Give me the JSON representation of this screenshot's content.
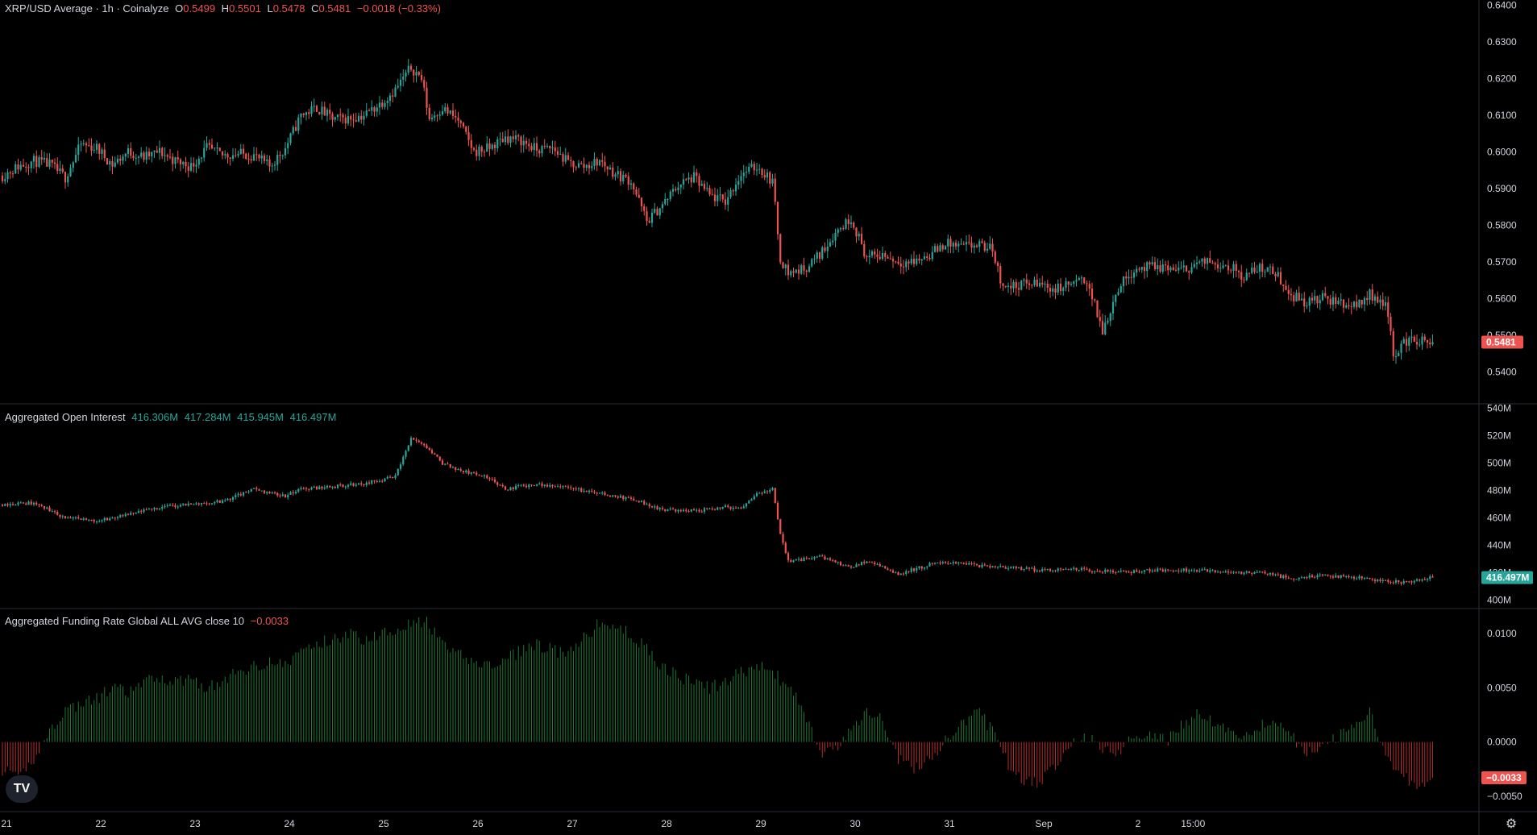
{
  "legends": {
    "price": {
      "title": "XRP/USD Average · 1h · Coinalyze",
      "o_label": "O",
      "o": "0.5499",
      "h_label": "H",
      "h": "0.5501",
      "l_label": "L",
      "l": "0.5478",
      "c_label": "C",
      "c": "0.5481",
      "change": "−0.0018 (−0.33%)"
    },
    "oi": {
      "title": "Aggregated Open Interest",
      "o": "416.306M",
      "h": "417.284M",
      "l": "415.945M",
      "c": "416.497M"
    },
    "fr": {
      "title": "Aggregated Funding Rate Global ALL AVG close 10",
      "value": "−0.0033"
    }
  },
  "badges": {
    "price_last": "0.5481",
    "oi_last": "416.497M",
    "fr_last": "−0.0033"
  },
  "icons": {
    "logo": "tradingview-logo-icon",
    "settings": "gear-icon"
  },
  "colors": {
    "up": "#26a69a",
    "down": "#ef5350",
    "bg": "#000000",
    "grid": "#2a2e39",
    "text": "#d1d4dc"
  },
  "chart_data": [
    {
      "type": "candlestick",
      "title": "XRP/USD Average · 1h · Coinalyze",
      "interval": "1h",
      "y_ticks": [
        "0.6400",
        "0.6300",
        "0.6200",
        "0.6100",
        "0.6000",
        "0.5900",
        "0.5800",
        "0.5700",
        "0.5600",
        "0.5500",
        "0.5400"
      ],
      "ylim": [
        0.537,
        0.6405
      ],
      "x_ticks": [
        "21",
        "22",
        "23",
        "24",
        "25",
        "26",
        "27",
        "28",
        "29",
        "30",
        "31",
        "Sep",
        "2",
        "15:00"
      ],
      "last": 0.5481,
      "anchors_close": [
        [
          0,
          0.5935
        ],
        [
          6,
          0.596
        ],
        [
          12,
          0.5975
        ],
        [
          18,
          0.5965
        ],
        [
          24,
          0.593
        ],
        [
          30,
          0.602
        ],
        [
          36,
          0.601
        ],
        [
          42,
          0.5965
        ],
        [
          48,
          0.6
        ],
        [
          54,
          0.5985
        ],
        [
          60,
          0.6
        ],
        [
          66,
          0.5975
        ],
        [
          72,
          0.596
        ],
        [
          78,
          0.601
        ],
        [
          84,
          0.599
        ],
        [
          90,
          0.5995
        ],
        [
          96,
          0.599
        ],
        [
          102,
          0.596
        ],
        [
          108,
          0.601
        ],
        [
          114,
          0.61
        ],
        [
          120,
          0.612
        ],
        [
          126,
          0.609
        ],
        [
          132,
          0.609
        ],
        [
          138,
          0.61
        ],
        [
          144,
          0.613
        ],
        [
          150,
          0.617
        ],
        [
          156,
          0.623
        ],
        [
          160,
          0.62
        ],
        [
          163,
          0.609
        ],
        [
          168,
          0.612
        ],
        [
          174,
          0.6085
        ],
        [
          180,
          0.6
        ],
        [
          186,
          0.601
        ],
        [
          192,
          0.604
        ],
        [
          198,
          0.603
        ],
        [
          204,
          0.6005
        ],
        [
          210,
          0.601
        ],
        [
          216,
          0.597
        ],
        [
          222,
          0.596
        ],
        [
          228,
          0.5975
        ],
        [
          234,
          0.594
        ],
        [
          240,
          0.592
        ],
        [
          246,
          0.581
        ],
        [
          252,
          0.5855
        ],
        [
          258,
          0.591
        ],
        [
          264,
          0.593
        ],
        [
          270,
          0.588
        ],
        [
          276,
          0.5865
        ],
        [
          282,
          0.594
        ],
        [
          288,
          0.596
        ],
        [
          294,
          0.592
        ],
        [
          297,
          0.571
        ],
        [
          300,
          0.567
        ],
        [
          306,
          0.568
        ],
        [
          312,
          0.572
        ],
        [
          318,
          0.578
        ],
        [
          324,
          0.582
        ],
        [
          330,
          0.571
        ],
        [
          336,
          0.572
        ],
        [
          342,
          0.57
        ],
        [
          348,
          0.57
        ],
        [
          354,
          0.572
        ],
        [
          360,
          0.575
        ],
        [
          366,
          0.574
        ],
        [
          372,
          0.5745
        ],
        [
          378,
          0.5735
        ],
        [
          381,
          0.565
        ],
        [
          384,
          0.563
        ],
        [
          390,
          0.564
        ],
        [
          396,
          0.564
        ],
        [
          402,
          0.5625
        ],
        [
          408,
          0.564
        ],
        [
          414,
          0.565
        ],
        [
          417,
          0.558
        ],
        [
          420,
          0.551
        ],
        [
          426,
          0.563
        ],
        [
          432,
          0.568
        ],
        [
          438,
          0.5685
        ],
        [
          444,
          0.5685
        ],
        [
          450,
          0.5675
        ],
        [
          456,
          0.5695
        ],
        [
          462,
          0.57
        ],
        [
          468,
          0.569
        ],
        [
          474,
          0.566
        ],
        [
          480,
          0.5685
        ],
        [
          486,
          0.567
        ],
        [
          492,
          0.561
        ],
        [
          498,
          0.559
        ],
        [
          504,
          0.56
        ],
        [
          510,
          0.559
        ],
        [
          516,
          0.558
        ],
        [
          522,
          0.561
        ],
        [
          528,
          0.559
        ],
        [
          531,
          0.545
        ],
        [
          537,
          0.549
        ],
        [
          543,
          0.548
        ],
        [
          546,
          0.5481
        ]
      ]
    },
    {
      "type": "candlestick",
      "title": "Aggregated Open Interest",
      "y_ticks": [
        "540M",
        "520M",
        "500M",
        "480M",
        "460M",
        "440M",
        "420M",
        "400M"
      ],
      "ylim": [
        398,
        541
      ],
      "last": 416.497,
      "anchors_close": [
        [
          0,
          470
        ],
        [
          12,
          471
        ],
        [
          24,
          460
        ],
        [
          36,
          458
        ],
        [
          48,
          462
        ],
        [
          60,
          468
        ],
        [
          72,
          470
        ],
        [
          84,
          472
        ],
        [
          96,
          481
        ],
        [
          108,
          476
        ],
        [
          114,
          481
        ],
        [
          126,
          483
        ],
        [
          138,
          485
        ],
        [
          150,
          490
        ],
        [
          156,
          518
        ],
        [
          162,
          511
        ],
        [
          168,
          500
        ],
        [
          174,
          495
        ],
        [
          186,
          489
        ],
        [
          192,
          481
        ],
        [
          204,
          485
        ],
        [
          216,
          482
        ],
        [
          228,
          478
        ],
        [
          240,
          474
        ],
        [
          252,
          466
        ],
        [
          264,
          465
        ],
        [
          276,
          468
        ],
        [
          282,
          466
        ],
        [
          288,
          478
        ],
        [
          294,
          481
        ],
        [
          297,
          448
        ],
        [
          300,
          428
        ],
        [
          306,
          430
        ],
        [
          312,
          432
        ],
        [
          318,
          428
        ],
        [
          324,
          424
        ],
        [
          330,
          428
        ],
        [
          336,
          424
        ],
        [
          342,
          419
        ],
        [
          354,
          426
        ],
        [
          366,
          428
        ],
        [
          372,
          425
        ],
        [
          384,
          424
        ],
        [
          396,
          422
        ],
        [
          408,
          423
        ],
        [
          420,
          421
        ],
        [
          432,
          421
        ],
        [
          444,
          422
        ],
        [
          456,
          422
        ],
        [
          468,
          420
        ],
        [
          480,
          420
        ],
        [
          492,
          416
        ],
        [
          504,
          418
        ],
        [
          516,
          417
        ],
        [
          528,
          414
        ],
        [
          534,
          413
        ],
        [
          546,
          416.5
        ]
      ]
    },
    {
      "type": "histogram",
      "title": "Aggregated Funding Rate Global ALL AVG close 10",
      "y_ticks": [
        "0.0100",
        "0.0050",
        "0.0000",
        "−0.0050"
      ],
      "ylim": [
        -0.0062,
        0.0118
      ],
      "last": -0.0033,
      "anchors": [
        [
          0,
          -0.0025
        ],
        [
          6,
          -0.0035
        ],
        [
          12,
          -0.0015
        ],
        [
          18,
          0.001
        ],
        [
          24,
          0.003
        ],
        [
          30,
          0.0035
        ],
        [
          36,
          0.004
        ],
        [
          42,
          0.005
        ],
        [
          48,
          0.0045
        ],
        [
          54,
          0.0055
        ],
        [
          60,
          0.006
        ],
        [
          66,
          0.0055
        ],
        [
          72,
          0.006
        ],
        [
          78,
          0.005
        ],
        [
          84,
          0.0055
        ],
        [
          90,
          0.0065
        ],
        [
          96,
          0.007
        ],
        [
          102,
          0.0075
        ],
        [
          108,
          0.007
        ],
        [
          114,
          0.0085
        ],
        [
          120,
          0.009
        ],
        [
          126,
          0.0095
        ],
        [
          132,
          0.01
        ],
        [
          138,
          0.0095
        ],
        [
          144,
          0.01
        ],
        [
          150,
          0.0105
        ],
        [
          156,
          0.011
        ],
        [
          162,
          0.011
        ],
        [
          168,
          0.009
        ],
        [
          174,
          0.008
        ],
        [
          180,
          0.0075
        ],
        [
          186,
          0.007
        ],
        [
          192,
          0.0075
        ],
        [
          198,
          0.0085
        ],
        [
          204,
          0.009
        ],
        [
          210,
          0.0085
        ],
        [
          216,
          0.008
        ],
        [
          222,
          0.0095
        ],
        [
          228,
          0.011
        ],
        [
          234,
          0.0105
        ],
        [
          240,
          0.01
        ],
        [
          246,
          0.0085
        ],
        [
          252,
          0.007
        ],
        [
          258,
          0.006
        ],
        [
          264,
          0.0055
        ],
        [
          270,
          0.005
        ],
        [
          276,
          0.0055
        ],
        [
          282,
          0.0065
        ],
        [
          288,
          0.007
        ],
        [
          294,
          0.0065
        ],
        [
          300,
          0.005
        ],
        [
          306,
          0.003
        ],
        [
          312,
          -0.001
        ],
        [
          318,
          -0.0008
        ],
        [
          324,
          0.001
        ],
        [
          330,
          0.003
        ],
        [
          336,
          0.002
        ],
        [
          342,
          -0.0015
        ],
        [
          348,
          -0.0025
        ],
        [
          354,
          -0.0015
        ],
        [
          360,
          0.0
        ],
        [
          366,
          0.0015
        ],
        [
          372,
          0.003
        ],
        [
          378,
          0.001
        ],
        [
          384,
          -0.002
        ],
        [
          390,
          -0.0035
        ],
        [
          396,
          -0.004
        ],
        [
          402,
          -0.002
        ],
        [
          408,
          0.0
        ],
        [
          414,
          0.0005
        ],
        [
          420,
          -0.0005
        ],
        [
          426,
          -0.001
        ],
        [
          432,
          0.0005
        ],
        [
          438,
          0.001
        ],
        [
          444,
          0.0
        ],
        [
          450,
          0.0015
        ],
        [
          456,
          0.0025
        ],
        [
          462,
          0.002
        ],
        [
          468,
          0.001
        ],
        [
          474,
          0.0005
        ],
        [
          480,
          0.0015
        ],
        [
          486,
          0.002
        ],
        [
          492,
          0.0005
        ],
        [
          498,
          -0.0008
        ],
        [
          504,
          -0.0005
        ],
        [
          510,
          0.0005
        ],
        [
          516,
          0.0015
        ],
        [
          522,
          0.003
        ],
        [
          528,
          -0.001
        ],
        [
          534,
          -0.003
        ],
        [
          540,
          -0.004
        ],
        [
          546,
          -0.0033
        ]
      ]
    }
  ]
}
